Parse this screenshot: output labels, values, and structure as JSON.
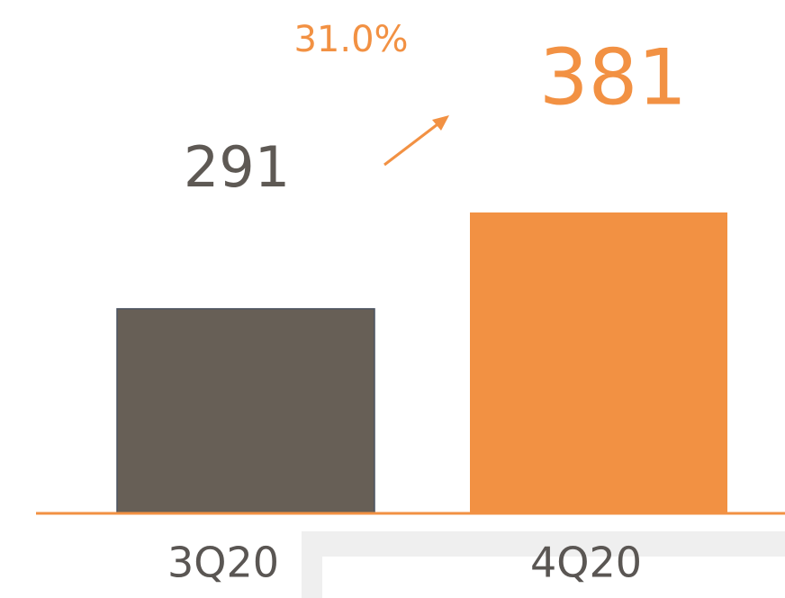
{
  "chart_data": {
    "type": "bar",
    "categories": [
      "3Q20",
      "4Q20"
    ],
    "values": [
      291,
      381
    ],
    "colors": [
      "#675f56",
      "#f29143"
    ],
    "ylim": [
      100,
      500
    ],
    "annotation": "31.0%",
    "annotation_color": "#f29143",
    "baseline_color": "#f29143"
  }
}
